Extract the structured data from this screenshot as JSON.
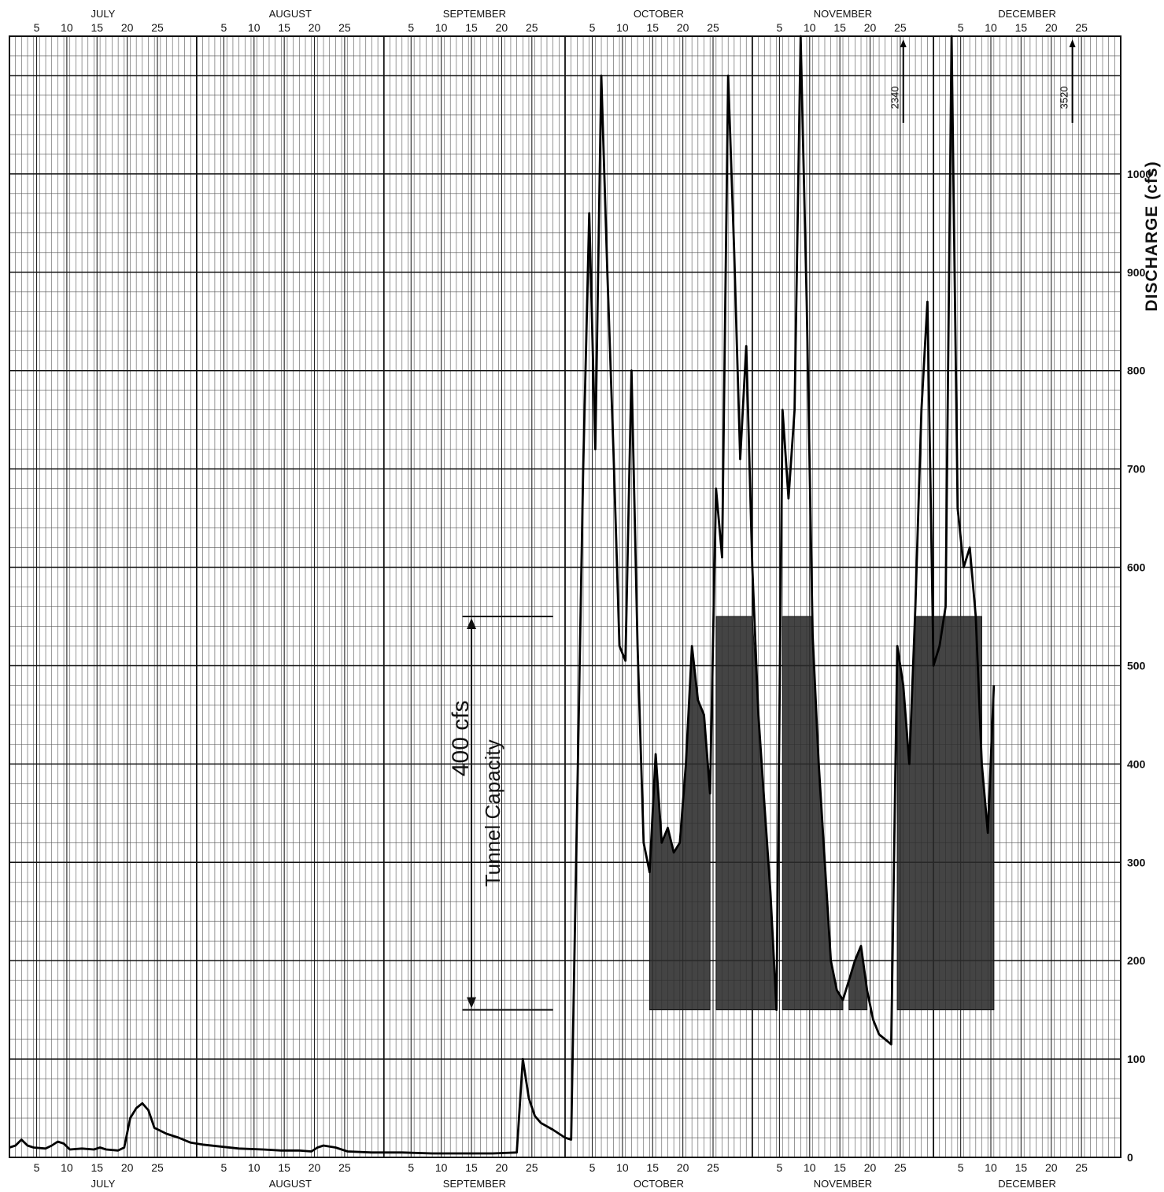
{
  "chart_data": {
    "type": "line",
    "ylabel": "DISCHARGE (cfs)",
    "xlabel": "",
    "ylim": [
      0,
      1140
    ],
    "grid": true,
    "months": [
      {
        "name": "JULY",
        "days": 31
      },
      {
        "name": "AUGUST",
        "days": 31
      },
      {
        "name": "SEPTEMBER",
        "days": 30
      },
      {
        "name": "OCTOBER",
        "days": 31
      },
      {
        "name": "NOVEMBER",
        "days": 30
      },
      {
        "name": "DECEMBER",
        "days": 31
      }
    ],
    "day_ticks": [
      5,
      10,
      15,
      20,
      25
    ],
    "top_day_ticks": [
      {
        "month": "JULY",
        "labels": [
          "5",
          "10",
          "15",
          "20",
          "25"
        ]
      },
      {
        "month": "AUGUST",
        "labels": [
          "5",
          "10",
          "15",
          "20",
          "25"
        ]
      },
      {
        "month": "SEPTEMBER",
        "labels": [
          "5",
          "10",
          "15",
          "20",
          "25"
        ]
      },
      {
        "month": "OCTOBER",
        "labels": [
          "5",
          "10",
          "15",
          "20",
          "25"
        ]
      },
      {
        "month": "NOVEMBER",
        "labels": [
          "5",
          "10",
          "15",
          "20",
          "25"
        ]
      },
      {
        "month": "DECEMBER",
        "labels": [
          "5",
          "10",
          "15",
          "20",
          "25"
        ]
      }
    ],
    "bottom_day_ticks": [
      {
        "month": "JULY",
        "labels": [
          "5",
          "10",
          "15",
          "20",
          "25"
        ]
      },
      {
        "month": "AUGUST",
        "labels": [
          "5",
          "10",
          "15",
          "20",
          "25"
        ]
      },
      {
        "month": "SEPTEMBER",
        "labels": [
          "5",
          "10",
          "15",
          "20",
          "25"
        ]
      },
      {
        "month": "OCTOBER",
        "labels": [
          "5",
          "10",
          "15",
          "20",
          "25"
        ]
      },
      {
        "month": "NOVEMBER",
        "labels": [
          "5",
          "10",
          "15",
          "20",
          "25"
        ]
      },
      {
        "month": "DECEMBER",
        "labels": [
          "5",
          "10",
          "15",
          "20",
          "25"
        ]
      }
    ],
    "y_ticks": [
      0,
      100,
      200,
      300,
      400,
      500,
      600,
      700,
      800,
      900,
      1000
    ],
    "tunnel_capacity": {
      "value_label": "400 cfs",
      "label": "Tunnel Capacity",
      "lower": 150,
      "upper": 550,
      "day_start": 75,
      "day_end": 90
    },
    "peak_annotations": [
      {
        "label": "2340",
        "day": 148
      },
      {
        "label": "3520",
        "day": 176
      }
    ],
    "series": [
      {
        "points": [
          [
            0,
            10
          ],
          [
            1,
            12
          ],
          [
            2,
            18
          ],
          [
            3,
            12
          ],
          [
            4,
            10
          ],
          [
            6,
            9
          ],
          [
            7,
            12
          ],
          [
            8,
            16
          ],
          [
            9,
            14
          ],
          [
            10,
            8
          ],
          [
            12,
            9
          ],
          [
            14,
            8
          ],
          [
            15,
            10
          ],
          [
            16,
            8
          ],
          [
            18,
            7
          ],
          [
            19,
            10
          ],
          [
            20,
            40
          ],
          [
            21,
            50
          ],
          [
            22,
            55
          ],
          [
            23,
            48
          ],
          [
            24,
            30
          ],
          [
            26,
            24
          ],
          [
            27,
            22
          ],
          [
            28,
            20
          ],
          [
            30,
            15
          ],
          [
            32,
            13
          ],
          [
            35,
            11
          ],
          [
            38,
            9
          ],
          [
            42,
            8
          ],
          [
            45,
            7
          ],
          [
            48,
            7
          ],
          [
            50,
            6
          ],
          [
            51,
            10
          ],
          [
            52,
            12
          ],
          [
            54,
            10
          ],
          [
            56,
            6
          ],
          [
            60,
            5
          ],
          [
            65,
            5
          ],
          [
            70,
            4
          ],
          [
            75,
            4
          ],
          [
            80,
            4
          ],
          [
            84,
            5
          ],
          [
            85,
            100
          ],
          [
            86,
            60
          ],
          [
            87,
            42
          ],
          [
            88,
            35
          ],
          [
            90,
            28
          ],
          [
            92,
            20
          ],
          [
            93,
            18
          ],
          [
            95,
            700
          ],
          [
            96,
            960
          ],
          [
            97,
            720
          ],
          [
            98,
            1100
          ],
          [
            99,
            900
          ],
          [
            100,
            720
          ],
          [
            101,
            520
          ],
          [
            102,
            505
          ],
          [
            103,
            800
          ],
          [
            104,
            520
          ],
          [
            105,
            320
          ],
          [
            106,
            290
          ],
          [
            107,
            410
          ],
          [
            108,
            320
          ],
          [
            109,
            335
          ],
          [
            110,
            310
          ],
          [
            111,
            320
          ],
          [
            112,
            400
          ],
          [
            113,
            520
          ],
          [
            114,
            465
          ],
          [
            115,
            450
          ],
          [
            116,
            370
          ],
          [
            117,
            680
          ],
          [
            118,
            610
          ],
          [
            119,
            1100
          ],
          [
            120,
            920
          ],
          [
            121,
            710
          ],
          [
            122,
            825
          ],
          [
            123,
            600
          ],
          [
            124,
            450
          ],
          [
            125,
            360
          ],
          [
            126,
            270
          ],
          [
            127,
            150
          ],
          [
            128,
            760
          ],
          [
            129,
            670
          ],
          [
            130,
            760
          ],
          [
            131,
            1400
          ],
          [
            132,
            870
          ],
          [
            133,
            530
          ],
          [
            134,
            400
          ],
          [
            135,
            300
          ],
          [
            136,
            200
          ],
          [
            137,
            170
          ],
          [
            138,
            160
          ],
          [
            139,
            180
          ],
          [
            140,
            200
          ],
          [
            141,
            215
          ],
          [
            142,
            170
          ],
          [
            143,
            140
          ],
          [
            144,
            125
          ],
          [
            145,
            120
          ],
          [
            146,
            115
          ],
          [
            147,
            520
          ],
          [
            148,
            480
          ],
          [
            149,
            400
          ],
          [
            150,
            560
          ],
          [
            151,
            760
          ],
          [
            152,
            870
          ],
          [
            153,
            500
          ],
          [
            154,
            520
          ],
          [
            155,
            560
          ],
          [
            156,
            1400
          ],
          [
            157,
            660
          ],
          [
            158,
            600
          ],
          [
            159,
            620
          ],
          [
            160,
            550
          ],
          [
            161,
            400
          ],
          [
            162,
            330
          ],
          [
            163,
            480
          ]
        ]
      }
    ],
    "shaded_regions": [
      {
        "points": [
          [
            106,
            150
          ],
          [
            106,
            290
          ],
          [
            107,
            410
          ],
          [
            108,
            320
          ],
          [
            109,
            335
          ],
          [
            110,
            310
          ],
          [
            111,
            320
          ],
          [
            112,
            400
          ],
          [
            113,
            520
          ],
          [
            114,
            465
          ],
          [
            115,
            450
          ],
          [
            116,
            370
          ],
          [
            116,
            150
          ]
        ]
      },
      {
        "points": [
          [
            117,
            150
          ],
          [
            117,
            550
          ],
          [
            123,
            550
          ],
          [
            124,
            450
          ],
          [
            125,
            360
          ],
          [
            126,
            270
          ],
          [
            127,
            150
          ]
        ]
      },
      {
        "points": [
          [
            128,
            150
          ],
          [
            128,
            550
          ],
          [
            133,
            550
          ],
          [
            133,
            530
          ],
          [
            134,
            400
          ],
          [
            135,
            300
          ],
          [
            136,
            200
          ],
          [
            137,
            170
          ],
          [
            138,
            160
          ],
          [
            138,
            150
          ]
        ]
      },
      {
        "points": [
          [
            139,
            150
          ],
          [
            139,
            180
          ],
          [
            140,
            200
          ],
          [
            141,
            215
          ],
          [
            142,
            170
          ],
          [
            142,
            150
          ]
        ]
      },
      {
        "points": [
          [
            147,
            150
          ],
          [
            147,
            520
          ],
          [
            148,
            480
          ],
          [
            149,
            400
          ],
          [
            150,
            550
          ],
          [
            161,
            550
          ],
          [
            161,
            400
          ],
          [
            162,
            330
          ],
          [
            163,
            480
          ],
          [
            163,
            150
          ]
        ]
      }
    ]
  }
}
